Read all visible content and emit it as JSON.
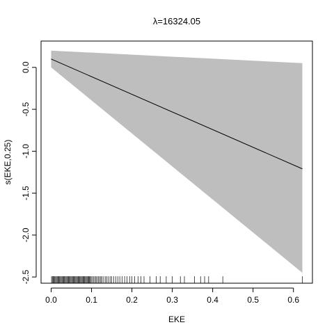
{
  "chart_data": {
    "type": "line",
    "title": "λ=16324.05",
    "xlabel": "EKE",
    "ylabel": "s(EKE,0.25)",
    "xlim": [
      -0.025,
      0.647
    ],
    "ylim": [
      -2.574,
      0.314
    ],
    "x_ticks": [
      0.0,
      0.1,
      0.2,
      0.3,
      0.4,
      0.5,
      0.6
    ],
    "x_tick_labels": [
      "0.0",
      "0.1",
      "0.2",
      "0.3",
      "0.4",
      "0.5",
      "0.6"
    ],
    "y_ticks": [
      0.0,
      -0.5,
      -1.0,
      -1.5,
      -2.0,
      -2.5
    ],
    "y_tick_labels": [
      "0.0",
      "-0.5",
      "-1.0",
      "-1.5",
      "-2.0",
      "-2.5"
    ],
    "grid": false,
    "series": [
      {
        "role": "fit",
        "color": "#000000",
        "x": [
          0.0,
          0.622
        ],
        "y": [
          0.1,
          -1.21
        ]
      },
      {
        "role": "confidence_band",
        "color": "#bebebe",
        "x": [
          0.0,
          0.622
        ],
        "upper": [
          0.2,
          0.05
        ],
        "lower": [
          0.0,
          -2.45
        ]
      }
    ],
    "rug": {
      "color": "#000000",
      "x": [
        0.001,
        0.003,
        0.005,
        0.007,
        0.009,
        0.011,
        0.013,
        0.015,
        0.017,
        0.019,
        0.021,
        0.023,
        0.025,
        0.027,
        0.029,
        0.031,
        0.033,
        0.035,
        0.037,
        0.039,
        0.041,
        0.043,
        0.045,
        0.047,
        0.049,
        0.051,
        0.053,
        0.055,
        0.057,
        0.059,
        0.061,
        0.063,
        0.065,
        0.067,
        0.069,
        0.071,
        0.073,
        0.075,
        0.077,
        0.079,
        0.081,
        0.083,
        0.085,
        0.087,
        0.089,
        0.091,
        0.093,
        0.095,
        0.097,
        0.099,
        0.102,
        0.105,
        0.108,
        0.111,
        0.114,
        0.117,
        0.12,
        0.123,
        0.126,
        0.13,
        0.134,
        0.138,
        0.142,
        0.146,
        0.15,
        0.155,
        0.16,
        0.165,
        0.17,
        0.176,
        0.182,
        0.188,
        0.195,
        0.2,
        0.207,
        0.215,
        0.222,
        0.23,
        0.245,
        0.26,
        0.27,
        0.285,
        0.3,
        0.32,
        0.33,
        0.355,
        0.37,
        0.38,
        0.39,
        0.425,
        0.622
      ]
    }
  }
}
